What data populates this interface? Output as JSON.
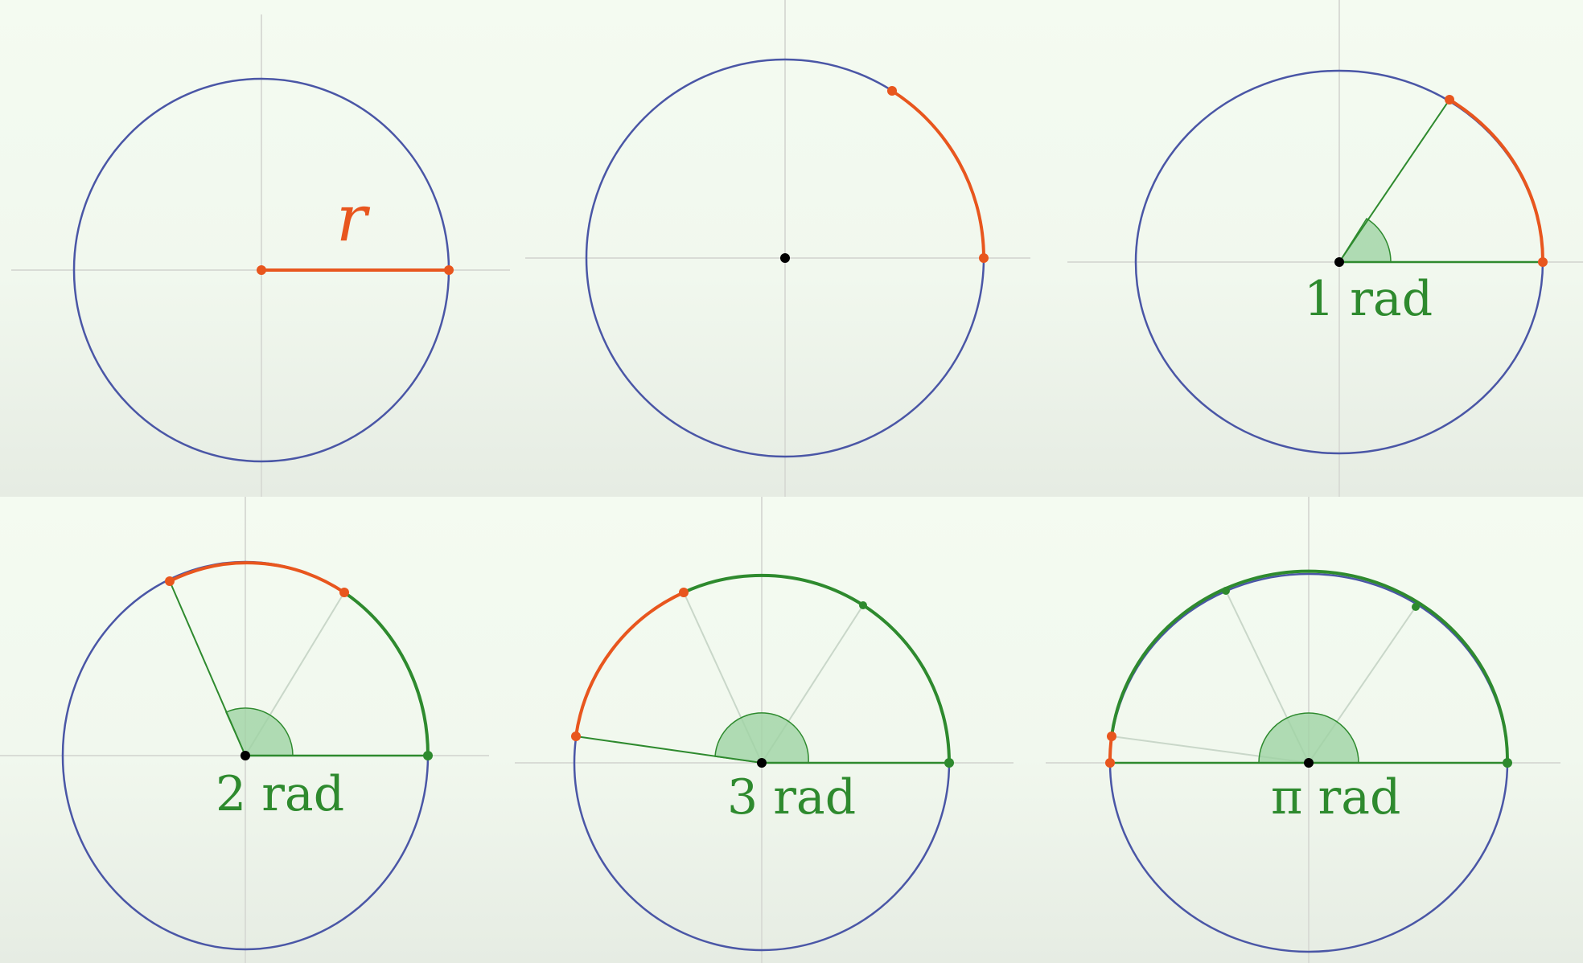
{
  "colors": {
    "circle": "#4a56a6",
    "axis": "#d9dcd6",
    "arc_highlight": "#e8561e",
    "arc_measured": "#2e8a2e",
    "angle_fill": "#9fd3a4",
    "spoke": "#c9d7c9",
    "center": "#000000"
  },
  "panels": [
    {
      "id": "radius",
      "caption": "",
      "radius_label": "r"
    },
    {
      "id": "arc-length-r",
      "caption": ""
    },
    {
      "id": "one-radian",
      "caption": "1 rad",
      "angle_rad": 1
    },
    {
      "id": "two-radians",
      "caption": "2 rad",
      "angle_rad": 2
    },
    {
      "id": "three-radians",
      "caption": "3 rad",
      "angle_rad": 3
    },
    {
      "id": "pi-radians",
      "caption": "π rad",
      "angle_rad": 3.14159
    }
  ]
}
